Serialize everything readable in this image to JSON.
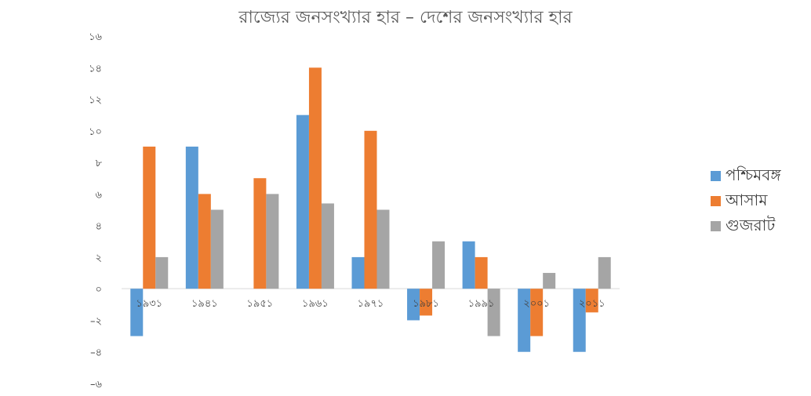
{
  "chart_data": {
    "type": "bar",
    "title": "রাজ্যের জনসংখ্যার হার – দেশের জনসংখ্যার হার",
    "xlabel": "",
    "ylabel": "",
    "ylim": [
      -6,
      16
    ],
    "yticks": [
      16,
      14,
      12,
      10,
      8,
      6,
      4,
      2,
      0,
      -2,
      -4,
      -6
    ],
    "ytick_labels": [
      "১৬",
      "১৪",
      "১২",
      "১০",
      "৮",
      "৬",
      "৪",
      "২",
      "০",
      "–২",
      "–৪",
      "–৬"
    ],
    "categories": [
      "১৯৩১",
      "১৯৪১",
      "১৯৫১",
      "১৯৬১",
      "১৯৭১",
      "১৯৮১",
      "১৯৯১",
      "২০০১",
      "২০১১"
    ],
    "series": [
      {
        "name": "পশ্চিমবঙ্গ",
        "color": "#5b9bd5",
        "values": [
          -3,
          9,
          0,
          11,
          2,
          -2,
          3,
          -4,
          -4
        ]
      },
      {
        "name": "আসাম",
        "color": "#ed7d31",
        "values": [
          9,
          6,
          7,
          14,
          10,
          -1.7,
          2,
          -3,
          -1.5
        ]
      },
      {
        "name": "গুজরাট",
        "color": "#a5a5a5",
        "values": [
          2,
          5,
          6,
          5.4,
          5,
          3,
          -3,
          1,
          2
        ]
      }
    ],
    "grid": false,
    "legend_position": "right"
  }
}
